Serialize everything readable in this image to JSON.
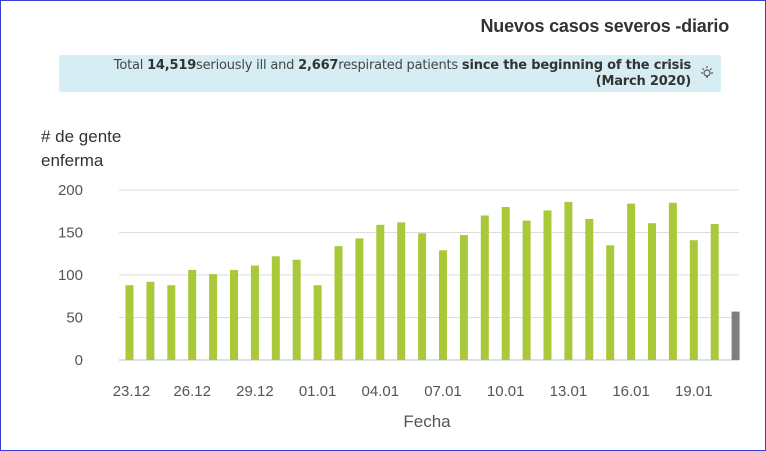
{
  "title": "Nuevos casos severos -diario",
  "banner": {
    "prefix": "Total ",
    "ill_count": "14,519",
    "ill_text": "seriously ill and ",
    "resp_count": "2,667",
    "resp_text": "respirated patients ",
    "since": "since the beginning of the crisis",
    "date": "(March 2020)",
    "icon": "lightbulb-icon"
  },
  "chart_data": {
    "type": "bar",
    "ylabel_line1": "# de gente",
    "ylabel_line2": "enferma",
    "xlabel": "Fecha",
    "ylim": [
      0,
      200
    ],
    "yticks": [
      0,
      50,
      100,
      150,
      200
    ],
    "grid": true,
    "categories": [
      "23.12",
      "24.12",
      "25.12",
      "26.12",
      "27.12",
      "28.12",
      "29.12",
      "30.12",
      "31.12",
      "01.01",
      "02.01",
      "03.01",
      "04.01",
      "05.01",
      "06.01",
      "07.01",
      "08.01",
      "09.01",
      "10.01",
      "11.01",
      "12.01",
      "13.01",
      "14.01",
      "15.01",
      "16.01",
      "17.01",
      "18.01",
      "19.01",
      "20.01",
      "21.01"
    ],
    "xtick_labels": [
      "23.12",
      "26.12",
      "29.12",
      "01.01",
      "04.01",
      "07.01",
      "10.01",
      "13.01",
      "16.01",
      "19.01"
    ],
    "values": [
      88,
      92,
      88,
      106,
      101,
      106,
      111,
      122,
      118,
      88,
      134,
      143,
      159,
      162,
      149,
      129,
      147,
      170,
      180,
      164,
      176,
      186,
      166,
      135,
      184,
      161,
      185,
      141,
      160,
      57
    ],
    "colors": [
      "#a9c93b",
      "#a9c93b",
      "#a9c93b",
      "#a9c93b",
      "#a9c93b",
      "#a9c93b",
      "#a9c93b",
      "#a9c93b",
      "#a9c93b",
      "#a9c93b",
      "#a9c93b",
      "#a9c93b",
      "#a9c93b",
      "#a9c93b",
      "#a9c93b",
      "#a9c93b",
      "#a9c93b",
      "#a9c93b",
      "#a9c93b",
      "#a9c93b",
      "#a9c93b",
      "#a9c93b",
      "#a9c93b",
      "#a9c93b",
      "#a9c93b",
      "#a9c93b",
      "#a9c93b",
      "#a9c93b",
      "#a9c93b",
      "#7f7f7f"
    ],
    "gridline_color": "#dddddd",
    "axis_color": "#bfbfbf"
  }
}
